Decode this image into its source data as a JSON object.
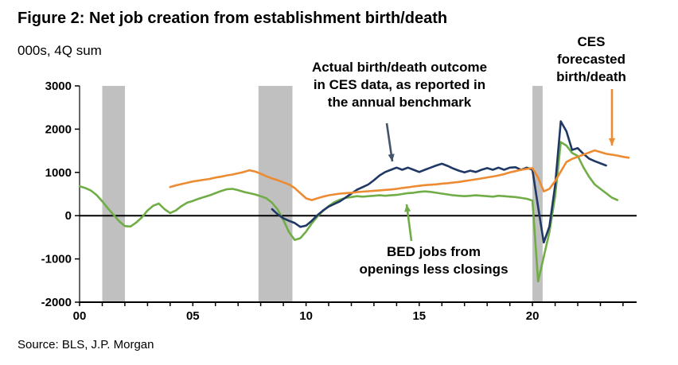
{
  "figure": {
    "title": "Figure 2: Net job creation from establishment birth/death",
    "subtitle": "000s, 4Q sum",
    "source": "Source: BLS, J.P. Morgan"
  },
  "annotations": [
    {
      "id": "ces-actual",
      "lines": [
        "Actual birth/death outcome",
        "in CES data, as reported in",
        "the annual benchmark"
      ],
      "arrow_color": "#44546a"
    },
    {
      "id": "ces-forecast",
      "lines": [
        "CES",
        "forecasted",
        "birth/death"
      ],
      "arrow_color": "#ed8b33"
    },
    {
      "id": "bed-jobs",
      "lines": [
        "BED jobs from",
        "openings less closings"
      ],
      "arrow_color": "#70ad47"
    }
  ],
  "chart_data": {
    "type": "line",
    "title": "Figure 2: Net job creation from establishment birth/death",
    "ylabel": "000s, 4Q sum",
    "xlabel": "",
    "ylim": [
      -2000,
      3000
    ],
    "xlim": [
      2000,
      2024.6
    ],
    "y_ticks": [
      -2000,
      -1000,
      0,
      1000,
      2000,
      3000
    ],
    "x_ticks": [
      2000,
      2005,
      2010,
      2015,
      2020
    ],
    "x_tick_labels": [
      "00",
      "05",
      "10",
      "15",
      "20"
    ],
    "grid": false,
    "legend": "none (annotated labels with arrows)",
    "zero_line": true,
    "band_color": "#c0c0c0",
    "recession_bands": [
      [
        2001.0,
        2002.0
      ],
      [
        2007.9,
        2009.4
      ],
      [
        2020.0,
        2020.45
      ]
    ],
    "series": [
      {
        "name": "BED jobs from openings less closings",
        "color": "#70ad47",
        "points": [
          [
            2000.0,
            680
          ],
          [
            2000.25,
            640
          ],
          [
            2000.5,
            580
          ],
          [
            2000.75,
            480
          ],
          [
            2001.0,
            330
          ],
          [
            2001.25,
            170
          ],
          [
            2001.5,
            20
          ],
          [
            2001.75,
            -130
          ],
          [
            2002.0,
            -240
          ],
          [
            2002.25,
            -250
          ],
          [
            2002.5,
            -160
          ],
          [
            2002.75,
            -40
          ],
          [
            2003.0,
            120
          ],
          [
            2003.25,
            230
          ],
          [
            2003.5,
            280
          ],
          [
            2003.75,
            150
          ],
          [
            2004.0,
            60
          ],
          [
            2004.25,
            120
          ],
          [
            2004.5,
            220
          ],
          [
            2004.75,
            300
          ],
          [
            2005.0,
            340
          ],
          [
            2005.25,
            390
          ],
          [
            2005.5,
            430
          ],
          [
            2005.75,
            470
          ],
          [
            2006.0,
            520
          ],
          [
            2006.25,
            570
          ],
          [
            2006.5,
            610
          ],
          [
            2006.75,
            620
          ],
          [
            2007.0,
            590
          ],
          [
            2007.25,
            550
          ],
          [
            2007.5,
            520
          ],
          [
            2007.75,
            490
          ],
          [
            2008.0,
            450
          ],
          [
            2008.25,
            400
          ],
          [
            2008.5,
            300
          ],
          [
            2008.75,
            140
          ],
          [
            2009.0,
            -100
          ],
          [
            2009.25,
            -380
          ],
          [
            2009.5,
            -560
          ],
          [
            2009.75,
            -520
          ],
          [
            2010.0,
            -370
          ],
          [
            2010.25,
            -180
          ],
          [
            2010.5,
            -20
          ],
          [
            2010.75,
            110
          ],
          [
            2011.0,
            220
          ],
          [
            2011.25,
            310
          ],
          [
            2011.5,
            370
          ],
          [
            2011.75,
            410
          ],
          [
            2012.0,
            430
          ],
          [
            2012.25,
            450
          ],
          [
            2012.5,
            440
          ],
          [
            2012.75,
            450
          ],
          [
            2013.0,
            460
          ],
          [
            2013.25,
            470
          ],
          [
            2013.5,
            460
          ],
          [
            2013.75,
            470
          ],
          [
            2014.0,
            480
          ],
          [
            2014.25,
            500
          ],
          [
            2014.5,
            520
          ],
          [
            2014.75,
            530
          ],
          [
            2015.0,
            550
          ],
          [
            2015.25,
            560
          ],
          [
            2015.5,
            550
          ],
          [
            2015.75,
            530
          ],
          [
            2016.0,
            510
          ],
          [
            2016.25,
            490
          ],
          [
            2016.5,
            470
          ],
          [
            2016.75,
            460
          ],
          [
            2017.0,
            450
          ],
          [
            2017.25,
            460
          ],
          [
            2017.5,
            470
          ],
          [
            2017.75,
            460
          ],
          [
            2018.0,
            450
          ],
          [
            2018.25,
            440
          ],
          [
            2018.5,
            460
          ],
          [
            2018.75,
            450
          ],
          [
            2019.0,
            440
          ],
          [
            2019.25,
            430
          ],
          [
            2019.5,
            410
          ],
          [
            2019.75,
            390
          ],
          [
            2020.0,
            350
          ],
          [
            2020.25,
            -1520
          ],
          [
            2020.5,
            -950
          ],
          [
            2020.75,
            -380
          ],
          [
            2021.0,
            450
          ],
          [
            2021.25,
            1700
          ],
          [
            2021.5,
            1620
          ],
          [
            2021.75,
            1450
          ],
          [
            2022.0,
            1380
          ],
          [
            2022.25,
            1120
          ],
          [
            2022.5,
            900
          ],
          [
            2022.75,
            720
          ],
          [
            2023.0,
            620
          ],
          [
            2023.25,
            520
          ],
          [
            2023.5,
            420
          ],
          [
            2023.75,
            360
          ]
        ]
      },
      {
        "name": "Actual birth/death outcome in CES data, as reported in the annual benchmark",
        "color": "#1f3864",
        "points": [
          [
            2008.5,
            150
          ],
          [
            2008.75,
            30
          ],
          [
            2009.0,
            -60
          ],
          [
            2009.25,
            -120
          ],
          [
            2009.5,
            -170
          ],
          [
            2009.75,
            -260
          ],
          [
            2010.0,
            -230
          ],
          [
            2010.25,
            -120
          ],
          [
            2010.5,
            10
          ],
          [
            2010.75,
            120
          ],
          [
            2011.0,
            210
          ],
          [
            2011.25,
            270
          ],
          [
            2011.5,
            330
          ],
          [
            2011.75,
            420
          ],
          [
            2012.0,
            510
          ],
          [
            2012.25,
            600
          ],
          [
            2012.5,
            660
          ],
          [
            2012.75,
            720
          ],
          [
            2013.0,
            820
          ],
          [
            2013.25,
            930
          ],
          [
            2013.5,
            1010
          ],
          [
            2013.75,
            1060
          ],
          [
            2014.0,
            1110
          ],
          [
            2014.25,
            1060
          ],
          [
            2014.5,
            1110
          ],
          [
            2014.75,
            1060
          ],
          [
            2015.0,
            1010
          ],
          [
            2015.25,
            1060
          ],
          [
            2015.5,
            1110
          ],
          [
            2015.75,
            1160
          ],
          [
            2016.0,
            1200
          ],
          [
            2016.25,
            1150
          ],
          [
            2016.5,
            1090
          ],
          [
            2016.75,
            1040
          ],
          [
            2017.0,
            1000
          ],
          [
            2017.25,
            1040
          ],
          [
            2017.5,
            1010
          ],
          [
            2017.75,
            1060
          ],
          [
            2018.0,
            1100
          ],
          [
            2018.25,
            1060
          ],
          [
            2018.5,
            1110
          ],
          [
            2018.75,
            1060
          ],
          [
            2019.0,
            1110
          ],
          [
            2019.25,
            1120
          ],
          [
            2019.5,
            1060
          ],
          [
            2019.75,
            1110
          ],
          [
            2020.0,
            1060
          ],
          [
            2020.25,
            200
          ],
          [
            2020.5,
            -620
          ],
          [
            2020.75,
            -250
          ],
          [
            2021.0,
            700
          ],
          [
            2021.25,
            2180
          ],
          [
            2021.5,
            1950
          ],
          [
            2021.75,
            1520
          ],
          [
            2022.0,
            1560
          ],
          [
            2022.25,
            1430
          ],
          [
            2022.5,
            1320
          ],
          [
            2022.75,
            1260
          ],
          [
            2023.0,
            1210
          ],
          [
            2023.25,
            1160
          ]
        ]
      },
      {
        "name": "CES forecasted birth/death",
        "color": "#ed8b33",
        "points": [
          [
            2004.0,
            660
          ],
          [
            2004.25,
            700
          ],
          [
            2004.5,
            730
          ],
          [
            2004.75,
            760
          ],
          [
            2005.0,
            790
          ],
          [
            2005.25,
            810
          ],
          [
            2005.5,
            830
          ],
          [
            2005.75,
            850
          ],
          [
            2006.0,
            880
          ],
          [
            2006.25,
            900
          ],
          [
            2006.5,
            930
          ],
          [
            2006.75,
            950
          ],
          [
            2007.0,
            980
          ],
          [
            2007.25,
            1010
          ],
          [
            2007.5,
            1050
          ],
          [
            2007.75,
            1020
          ],
          [
            2008.0,
            970
          ],
          [
            2008.25,
            910
          ],
          [
            2008.5,
            860
          ],
          [
            2008.75,
            820
          ],
          [
            2009.0,
            770
          ],
          [
            2009.25,
            720
          ],
          [
            2009.5,
            640
          ],
          [
            2009.75,
            520
          ],
          [
            2010.0,
            400
          ],
          [
            2010.25,
            360
          ],
          [
            2010.5,
            400
          ],
          [
            2010.75,
            440
          ],
          [
            2011.0,
            470
          ],
          [
            2011.25,
            490
          ],
          [
            2011.5,
            510
          ],
          [
            2011.75,
            520
          ],
          [
            2012.0,
            530
          ],
          [
            2012.25,
            545
          ],
          [
            2012.5,
            555
          ],
          [
            2012.75,
            565
          ],
          [
            2013.0,
            575
          ],
          [
            2013.25,
            585
          ],
          [
            2013.5,
            595
          ],
          [
            2013.75,
            605
          ],
          [
            2014.0,
            620
          ],
          [
            2014.25,
            640
          ],
          [
            2014.5,
            655
          ],
          [
            2014.75,
            675
          ],
          [
            2015.0,
            690
          ],
          [
            2015.25,
            705
          ],
          [
            2015.5,
            715
          ],
          [
            2015.75,
            725
          ],
          [
            2016.0,
            740
          ],
          [
            2016.25,
            750
          ],
          [
            2016.5,
            765
          ],
          [
            2016.75,
            780
          ],
          [
            2017.0,
            800
          ],
          [
            2017.25,
            820
          ],
          [
            2017.5,
            840
          ],
          [
            2017.75,
            860
          ],
          [
            2018.0,
            885
          ],
          [
            2018.25,
            905
          ],
          [
            2018.5,
            930
          ],
          [
            2018.75,
            960
          ],
          [
            2019.0,
            1000
          ],
          [
            2019.25,
            1030
          ],
          [
            2019.5,
            1060
          ],
          [
            2019.75,
            1080
          ],
          [
            2020.0,
            1100
          ],
          [
            2020.25,
            880
          ],
          [
            2020.5,
            560
          ],
          [
            2020.75,
            620
          ],
          [
            2021.0,
            800
          ],
          [
            2021.25,
            1020
          ],
          [
            2021.5,
            1240
          ],
          [
            2021.75,
            1310
          ],
          [
            2022.0,
            1360
          ],
          [
            2022.25,
            1410
          ],
          [
            2022.5,
            1460
          ],
          [
            2022.75,
            1510
          ],
          [
            2023.0,
            1470
          ],
          [
            2023.25,
            1430
          ],
          [
            2023.5,
            1410
          ],
          [
            2023.75,
            1390
          ],
          [
            2024.0,
            1360
          ],
          [
            2024.25,
            1340
          ]
        ]
      }
    ]
  }
}
